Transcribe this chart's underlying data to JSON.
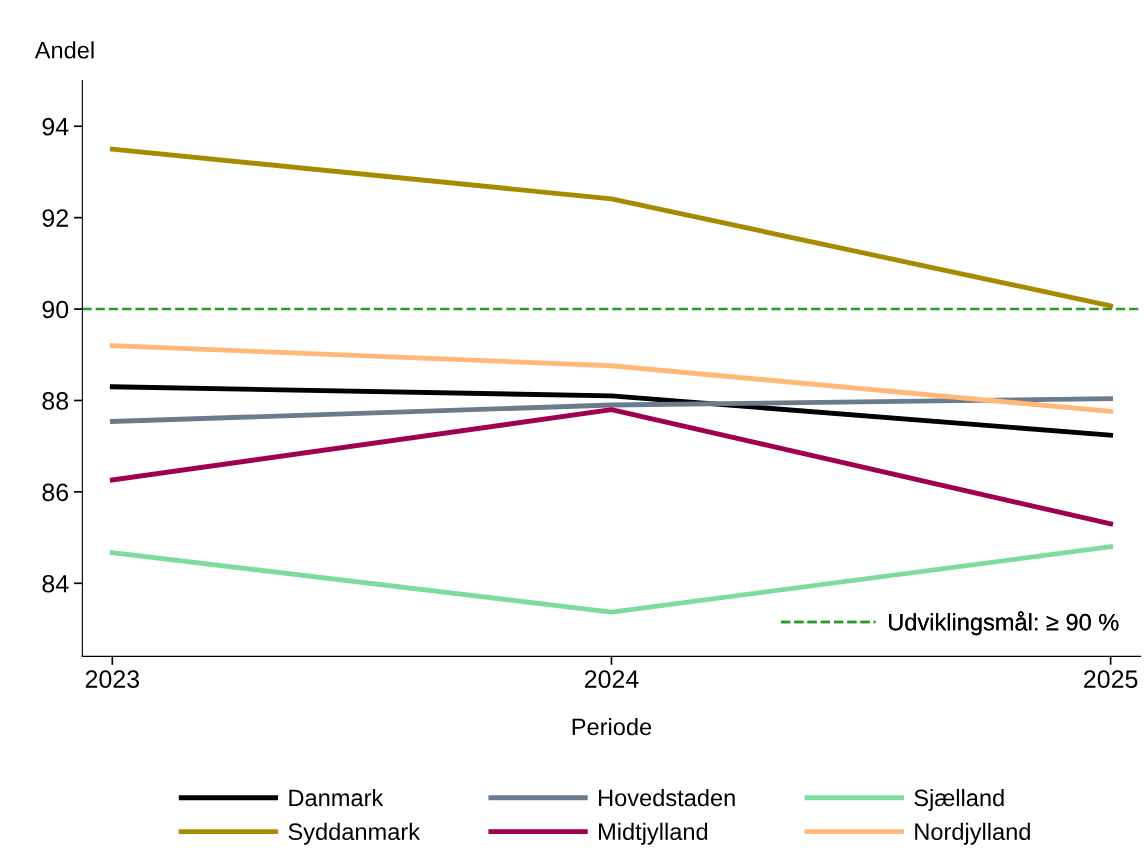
{
  "chart_data": {
    "type": "line",
    "xlabel": "Periode",
    "ylabel": "Andel",
    "x": [
      2023,
      2024,
      2025
    ],
    "series": [
      {
        "name": "Danmark",
        "color": "#000000",
        "values": [
          88.3,
          88.1,
          87.24
        ]
      },
      {
        "name": "Hovedstaden",
        "color": "#6b7b8c",
        "values": [
          87.54,
          87.9,
          88.04
        ]
      },
      {
        "name": "Sjælland",
        "color": "#7ddba0",
        "values": [
          84.67,
          83.37,
          84.8
        ]
      },
      {
        "name": "Syddanmark",
        "color": "#a88a00",
        "values": [
          93.5,
          92.41,
          90.07
        ]
      },
      {
        "name": "Midtjylland",
        "color": "#a0004f",
        "values": [
          86.26,
          87.8,
          85.3
        ]
      },
      {
        "name": "Nordjylland",
        "color": "#ffb877",
        "values": [
          89.2,
          88.76,
          87.76
        ]
      }
    ],
    "ref_lines": [
      {
        "axis": "y",
        "value": 90,
        "label": "Udviklingsmål: ≥ 90 %",
        "color": "#2a9a2a",
        "line_style": "dashed"
      }
    ],
    "xlim": [
      2022.94,
      2025.06
    ],
    "xticks": [
      2023,
      2024,
      2025
    ],
    "ylim": [
      82.4,
      95
    ],
    "yticks": [
      84,
      86,
      88,
      90,
      92,
      94
    ],
    "grid": false,
    "legend": "bottom",
    "marker": "none",
    "line_style": "solid"
  }
}
